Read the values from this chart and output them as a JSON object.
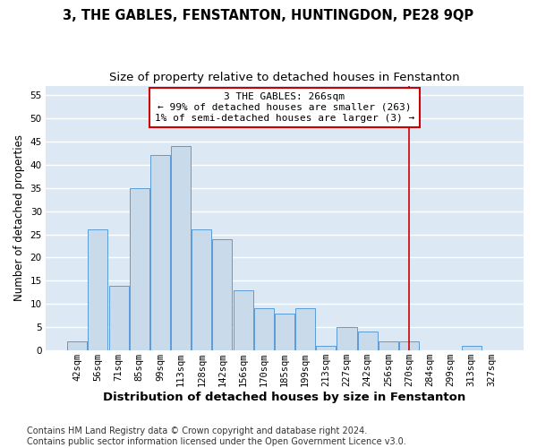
{
  "title": "3, THE GABLES, FENSTANTON, HUNTINGDON, PE28 9QP",
  "subtitle": "Size of property relative to detached houses in Fenstanton",
  "xlabel": "Distribution of detached houses by size in Fenstanton",
  "ylabel": "Number of detached properties",
  "categories": [
    "42sqm",
    "56sqm",
    "71sqm",
    "85sqm",
    "99sqm",
    "113sqm",
    "128sqm",
    "142sqm",
    "156sqm",
    "170sqm",
    "185sqm",
    "199sqm",
    "213sqm",
    "227sqm",
    "242sqm",
    "256sqm",
    "270sqm",
    "284sqm",
    "299sqm",
    "313sqm",
    "327sqm"
  ],
  "values": [
    2,
    26,
    14,
    35,
    42,
    44,
    26,
    24,
    13,
    9,
    8,
    9,
    1,
    5,
    4,
    2,
    2,
    0,
    0,
    1,
    0
  ],
  "bar_color": "#c9daea",
  "bar_edge_color": "#5b9bd5",
  "background_color": "#dce9f5",
  "grid_color": "#ffffff",
  "vline_x_index": 16.0,
  "vline_color": "#cc0000",
  "annotation_box_text": "3 THE GABLES: 266sqm\n← 99% of detached houses are smaller (263)\n1% of semi-detached houses are larger (3) →",
  "annotation_box_color": "#cc0000",
  "annotation_box_facecolor": "#ffffff",
  "ylim": [
    0,
    57
  ],
  "yticks": [
    0,
    5,
    10,
    15,
    20,
    25,
    30,
    35,
    40,
    45,
    50,
    55
  ],
  "footer": "Contains HM Land Registry data © Crown copyright and database right 2024.\nContains public sector information licensed under the Open Government Licence v3.0.",
  "title_fontsize": 10.5,
  "subtitle_fontsize": 9.5,
  "xlabel_fontsize": 9.5,
  "ylabel_fontsize": 8.5,
  "tick_fontsize": 7.5,
  "footer_fontsize": 7
}
